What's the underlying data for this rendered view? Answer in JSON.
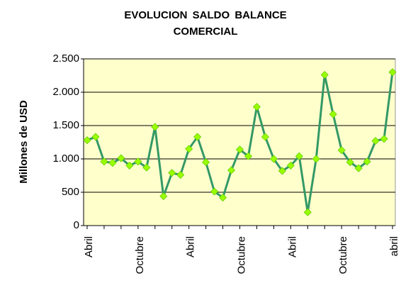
{
  "chart_data": {
    "type": "line",
    "title": "EVOLUCION SALDO BALANCE COMERCIAL",
    "y_label": "Millones de USD",
    "categories": [
      "Abril",
      null,
      null,
      null,
      null,
      null,
      "Octubre",
      null,
      null,
      null,
      null,
      null,
      "Abril",
      null,
      null,
      null,
      null,
      null,
      "Octubre",
      null,
      null,
      null,
      null,
      null,
      "Abril",
      null,
      null,
      null,
      null,
      null,
      "Octubre",
      null,
      null,
      null,
      null,
      null,
      "abril"
    ],
    "series": [
      {
        "color": "#339966",
        "marker_color": "#99ff00",
        "values": [
          1280,
          1330,
          960,
          940,
          1010,
          900,
          960,
          870,
          1480,
          440,
          790,
          760,
          1150,
          1330,
          950,
          510,
          420,
          830,
          1140,
          1040,
          1780,
          1330,
          1000,
          820,
          900,
          1040,
          200,
          1000,
          2260,
          1670,
          1130,
          950,
          860,
          960,
          1270,
          1300,
          2300
        ]
      }
    ],
    "ylim": [
      0,
      2500
    ],
    "yticks": [
      0,
      500,
      {
        "value": 1000,
        "label": "1.000"
      },
      {
        "value": 1500,
        "label": "1.500"
      },
      {
        "value": 2000,
        "label": "2.000"
      },
      {
        "value": 2500,
        "label": "2.500"
      }
    ],
    "grid": true,
    "plot_background": "#ffffcc"
  }
}
